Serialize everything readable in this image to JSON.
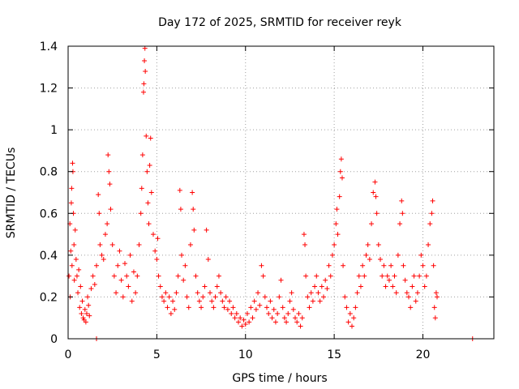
{
  "chart_data": {
    "type": "scatter",
    "title": "Day 172 of 2025, SRMTID for receiver reyk",
    "xlabel": "GPS time / hours",
    "ylabel": "SRMTID / TECUs",
    "xlim": [
      0,
      24
    ],
    "ylim": [
      0,
      1.4
    ],
    "xticks": [
      0,
      5,
      10,
      15,
      20
    ],
    "xtick_labels": [
      "0",
      "5",
      "10",
      "15",
      "20"
    ],
    "yticks": [
      0,
      0.2,
      0.4,
      0.6,
      0.8,
      1.0,
      1.2,
      1.4
    ],
    "ytick_labels": [
      "0",
      "0.2",
      "0.4",
      "0.6",
      "0.8",
      "1",
      "1.2",
      "1.4"
    ],
    "grid": true,
    "marker": "+",
    "series": [
      {
        "name": "SRMTID",
        "color": "#ff0000",
        "points": [
          [
            0.05,
            0.3
          ],
          [
            0.1,
            0.55
          ],
          [
            0.12,
            0.2
          ],
          [
            0.15,
            0.42
          ],
          [
            0.18,
            0.65
          ],
          [
            0.2,
            0.72
          ],
          [
            0.22,
            0.35
          ],
          [
            0.25,
            0.84
          ],
          [
            0.27,
            0.8
          ],
          [
            0.3,
            0.6
          ],
          [
            0.33,
            0.45
          ],
          [
            0.35,
            0.28
          ],
          [
            0.4,
            0.52
          ],
          [
            0.45,
            0.38
          ],
          [
            0.5,
            0.3
          ],
          [
            0.55,
            0.22
          ],
          [
            0.6,
            0.33
          ],
          [
            0.65,
            0.15
          ],
          [
            0.7,
            0.25
          ],
          [
            0.75,
            0.12
          ],
          [
            0.8,
            0.18
          ],
          [
            0.85,
            0.1
          ],
          [
            0.9,
            0.09
          ],
          [
            0.95,
            0.14
          ],
          [
            1.0,
            0.08
          ],
          [
            1.05,
            0.12
          ],
          [
            1.1,
            0.2
          ],
          [
            1.15,
            0.16
          ],
          [
            1.2,
            0.11
          ],
          [
            1.3,
            0.24
          ],
          [
            1.4,
            0.3
          ],
          [
            1.5,
            0.26
          ],
          [
            1.6,
            0.35
          ],
          [
            1.7,
            0.69
          ],
          [
            1.75,
            0.6
          ],
          [
            1.8,
            0.45
          ],
          [
            1.9,
            0.4
          ],
          [
            2.0,
            0.38
          ],
          [
            2.1,
            0.5
          ],
          [
            2.2,
            0.55
          ],
          [
            2.25,
            0.88
          ],
          [
            2.3,
            0.8
          ],
          [
            2.35,
            0.74
          ],
          [
            2.4,
            0.62
          ],
          [
            2.5,
            0.45
          ],
          [
            2.6,
            0.3
          ],
          [
            2.7,
            0.22
          ],
          [
            2.8,
            0.35
          ],
          [
            2.9,
            0.42
          ],
          [
            3.0,
            0.28
          ],
          [
            3.1,
            0.2
          ],
          [
            3.2,
            0.36
          ],
          [
            3.3,
            0.3
          ],
          [
            3.4,
            0.25
          ],
          [
            3.5,
            0.4
          ],
          [
            3.6,
            0.18
          ],
          [
            3.7,
            0.32
          ],
          [
            3.8,
            0.22
          ],
          [
            3.9,
            0.3
          ],
          [
            4.0,
            0.45
          ],
          [
            4.1,
            0.6
          ],
          [
            4.15,
            0.72
          ],
          [
            4.2,
            0.88
          ],
          [
            4.25,
            1.18
          ],
          [
            4.27,
            1.22
          ],
          [
            4.3,
            1.33
          ],
          [
            4.33,
            1.39
          ],
          [
            4.35,
            1.28
          ],
          [
            4.4,
            0.97
          ],
          [
            4.45,
            0.8
          ],
          [
            4.5,
            0.65
          ],
          [
            4.55,
            0.55
          ],
          [
            4.6,
            0.83
          ],
          [
            4.65,
            0.96
          ],
          [
            4.7,
            0.7
          ],
          [
            4.8,
            0.5
          ],
          [
            4.9,
            0.42
          ],
          [
            5.0,
            0.38
          ],
          [
            5.05,
            0.48
          ],
          [
            5.1,
            0.3
          ],
          [
            5.2,
            0.25
          ],
          [
            5.3,
            0.2
          ],
          [
            5.4,
            0.18
          ],
          [
            5.5,
            0.22
          ],
          [
            5.6,
            0.15
          ],
          [
            5.7,
            0.2
          ],
          [
            5.8,
            0.12
          ],
          [
            5.9,
            0.18
          ],
          [
            6.0,
            0.14
          ],
          [
            6.1,
            0.22
          ],
          [
            6.2,
            0.3
          ],
          [
            6.3,
            0.71
          ],
          [
            6.35,
            0.62
          ],
          [
            6.4,
            0.4
          ],
          [
            6.5,
            0.28
          ],
          [
            6.6,
            0.35
          ],
          [
            6.7,
            0.2
          ],
          [
            6.8,
            0.15
          ],
          [
            6.9,
            0.45
          ],
          [
            7.0,
            0.7
          ],
          [
            7.05,
            0.62
          ],
          [
            7.1,
            0.52
          ],
          [
            7.2,
            0.3
          ],
          [
            7.3,
            0.22
          ],
          [
            7.4,
            0.18
          ],
          [
            7.5,
            0.15
          ],
          [
            7.6,
            0.2
          ],
          [
            7.7,
            0.25
          ],
          [
            7.8,
            0.52
          ],
          [
            7.9,
            0.38
          ],
          [
            8.0,
            0.22
          ],
          [
            8.1,
            0.18
          ],
          [
            8.2,
            0.15
          ],
          [
            8.3,
            0.2
          ],
          [
            8.4,
            0.25
          ],
          [
            8.5,
            0.3
          ],
          [
            8.6,
            0.22
          ],
          [
            8.7,
            0.18
          ],
          [
            8.8,
            0.15
          ],
          [
            8.9,
            0.2
          ],
          [
            9.0,
            0.14
          ],
          [
            9.1,
            0.18
          ],
          [
            9.2,
            0.12
          ],
          [
            9.3,
            0.15
          ],
          [
            9.4,
            0.1
          ],
          [
            9.5,
            0.12
          ],
          [
            9.6,
            0.08
          ],
          [
            9.7,
            0.1
          ],
          [
            9.8,
            0.06
          ],
          [
            9.9,
            0.09
          ],
          [
            10.0,
            0.07
          ],
          [
            10.1,
            0.12
          ],
          [
            10.2,
            0.08
          ],
          [
            10.3,
            0.15
          ],
          [
            10.4,
            0.1
          ],
          [
            10.5,
            0.18
          ],
          [
            10.6,
            0.14
          ],
          [
            10.7,
            0.22
          ],
          [
            10.8,
            0.16
          ],
          [
            10.9,
            0.35
          ],
          [
            11.0,
            0.3
          ],
          [
            11.1,
            0.2
          ],
          [
            11.2,
            0.15
          ],
          [
            11.3,
            0.12
          ],
          [
            11.4,
            0.18
          ],
          [
            11.5,
            0.1
          ],
          [
            11.6,
            0.14
          ],
          [
            11.7,
            0.08
          ],
          [
            11.8,
            0.12
          ],
          [
            11.9,
            0.2
          ],
          [
            12.0,
            0.28
          ],
          [
            12.1,
            0.15
          ],
          [
            12.2,
            0.1
          ],
          [
            12.3,
            0.08
          ],
          [
            12.4,
            0.12
          ],
          [
            12.5,
            0.18
          ],
          [
            12.6,
            0.22
          ],
          [
            12.7,
            0.14
          ],
          [
            12.8,
            0.1
          ],
          [
            12.9,
            0.08
          ],
          [
            13.0,
            0.12
          ],
          [
            13.1,
            0.06
          ],
          [
            13.2,
            0.1
          ],
          [
            13.3,
            0.5
          ],
          [
            13.35,
            0.45
          ],
          [
            13.4,
            0.3
          ],
          [
            13.5,
            0.2
          ],
          [
            13.6,
            0.15
          ],
          [
            13.7,
            0.22
          ],
          [
            13.8,
            0.18
          ],
          [
            13.9,
            0.25
          ],
          [
            14.0,
            0.3
          ],
          [
            14.1,
            0.22
          ],
          [
            14.2,
            0.18
          ],
          [
            14.3,
            0.25
          ],
          [
            14.4,
            0.2
          ],
          [
            14.5,
            0.28
          ],
          [
            14.6,
            0.24
          ],
          [
            14.7,
            0.35
          ],
          [
            14.8,
            0.3
          ],
          [
            14.9,
            0.4
          ],
          [
            15.0,
            0.45
          ],
          [
            15.1,
            0.55
          ],
          [
            15.15,
            0.62
          ],
          [
            15.2,
            0.5
          ],
          [
            15.3,
            0.68
          ],
          [
            15.35,
            0.8
          ],
          [
            15.4,
            0.86
          ],
          [
            15.45,
            0.77
          ],
          [
            15.5,
            0.35
          ],
          [
            15.6,
            0.2
          ],
          [
            15.7,
            0.15
          ],
          [
            15.8,
            0.08
          ],
          [
            15.9,
            0.12
          ],
          [
            16.0,
            0.06
          ],
          [
            16.1,
            0.1
          ],
          [
            16.2,
            0.15
          ],
          [
            16.3,
            0.22
          ],
          [
            16.4,
            0.3
          ],
          [
            16.5,
            0.25
          ],
          [
            16.6,
            0.35
          ],
          [
            16.7,
            0.3
          ],
          [
            16.8,
            0.4
          ],
          [
            16.9,
            0.45
          ],
          [
            17.0,
            0.38
          ],
          [
            17.1,
            0.55
          ],
          [
            17.2,
            0.7
          ],
          [
            17.3,
            0.75
          ],
          [
            17.35,
            0.68
          ],
          [
            17.4,
            0.6
          ],
          [
            17.5,
            0.45
          ],
          [
            17.6,
            0.38
          ],
          [
            17.7,
            0.3
          ],
          [
            17.8,
            0.35
          ],
          [
            17.9,
            0.25
          ],
          [
            18.0,
            0.3
          ],
          [
            18.1,
            0.28
          ],
          [
            18.2,
            0.35
          ],
          [
            18.3,
            0.25
          ],
          [
            18.4,
            0.3
          ],
          [
            18.5,
            0.22
          ],
          [
            18.6,
            0.4
          ],
          [
            18.7,
            0.55
          ],
          [
            18.8,
            0.66
          ],
          [
            18.85,
            0.6
          ],
          [
            18.9,
            0.35
          ],
          [
            19.0,
            0.28
          ],
          [
            19.1,
            0.22
          ],
          [
            19.2,
            0.2
          ],
          [
            19.3,
            0.15
          ],
          [
            19.4,
            0.25
          ],
          [
            19.5,
            0.3
          ],
          [
            19.6,
            0.18
          ],
          [
            19.7,
            0.22
          ],
          [
            19.8,
            0.3
          ],
          [
            19.9,
            0.4
          ],
          [
            20.0,
            0.35
          ],
          [
            20.1,
            0.25
          ],
          [
            20.2,
            0.3
          ],
          [
            20.3,
            0.45
          ],
          [
            20.4,
            0.55
          ],
          [
            20.5,
            0.6
          ],
          [
            20.55,
            0.66
          ],
          [
            20.6,
            0.35
          ],
          [
            20.65,
            0.15
          ],
          [
            20.7,
            0.1
          ],
          [
            20.75,
            0.22
          ],
          [
            20.8,
            0.2
          ],
          [
            1.6,
            0.0
          ],
          [
            22.8,
            0.0
          ]
        ]
      }
    ]
  }
}
